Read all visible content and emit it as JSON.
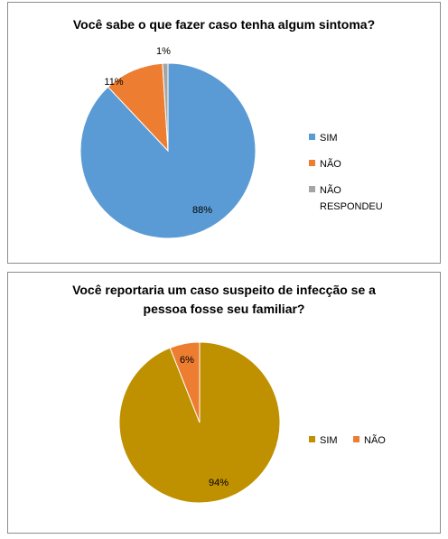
{
  "chart_data": [
    {
      "type": "pie",
      "title": "Você sabe o que fazer caso tenha algum sintoma?",
      "categories": [
        "SIM",
        "NÃO",
        "NÃO RESPONDEU"
      ],
      "values": [
        88,
        11,
        1
      ],
      "data_labels": [
        "88%",
        "11%",
        "1%"
      ],
      "colors": [
        "#5b9bd5",
        "#ed7d31",
        "#a5a5a5"
      ],
      "legend": "right",
      "legend_lines": [
        [
          "SIM"
        ],
        [
          "NÃO"
        ],
        [
          "NÃO",
          "RESPONDEU"
        ]
      ]
    },
    {
      "type": "pie",
      "title": "Você reportaria um caso suspeito de infecção se a pessoa fosse seu familiar?",
      "categories": [
        "SIM",
        "NÃO"
      ],
      "values": [
        94,
        6
      ],
      "data_labels": [
        "94%",
        "6%"
      ],
      "colors": [
        "#bf9000",
        "#ed7d31"
      ],
      "legend": "right",
      "legend_lines": [
        [
          "SIM"
        ],
        [
          "NÃO"
        ]
      ]
    }
  ]
}
